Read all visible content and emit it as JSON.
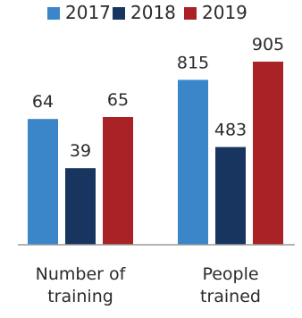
{
  "chart_data": {
    "type": "bar",
    "title": "",
    "xlabel": "",
    "ylabel": "",
    "legend_position": "top",
    "grid": false,
    "categories": [
      [
        "Number of",
        "training"
      ],
      [
        "People",
        "trained"
      ]
    ],
    "series": [
      {
        "name": "2017",
        "color": "#3a86c8",
        "values": [
          64,
          815
        ]
      },
      {
        "name": "2018",
        "color": "#17355e",
        "values": [
          39,
          483
        ]
      },
      {
        "name": "2019",
        "color": "#a82226",
        "values": [
          65,
          905
        ]
      }
    ],
    "group_scales_independent": true
  }
}
